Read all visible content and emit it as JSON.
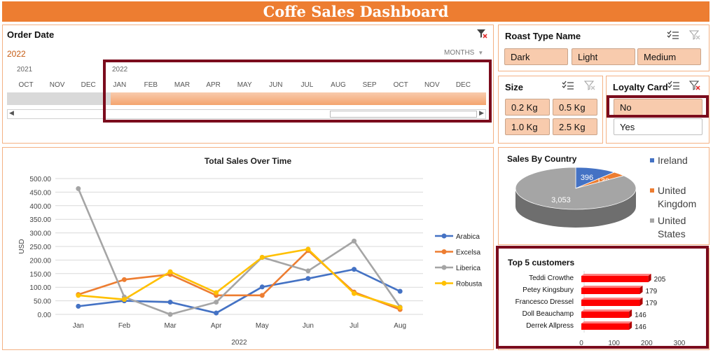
{
  "dashboard": {
    "title": "Coffe Sales Dashboard"
  },
  "timeline": {
    "title": "Order Date",
    "selected_label": "2022",
    "period_control": "MONTHS",
    "year_prev": "2021",
    "year_curr": "2022",
    "months_prev": [
      "OCT",
      "NOV",
      "DEC"
    ],
    "months_curr": [
      "JAN",
      "FEB",
      "MAR",
      "APR",
      "MAY",
      "JUN",
      "JUL",
      "AUG",
      "SEP",
      "OCT",
      "NOV",
      "DEC"
    ]
  },
  "roast_slicer": {
    "title": "Roast Type Name",
    "items": [
      "Dark",
      "Light",
      "Medium"
    ]
  },
  "size_slicer": {
    "title": "Size",
    "items": [
      "0.2 Kg",
      "0.5 Kg",
      "1.0 Kg",
      "2.5 Kg"
    ]
  },
  "loyalty_slicer": {
    "title": "Loyalty Card",
    "items": [
      "No",
      "Yes"
    ],
    "selected": "No"
  },
  "colors": {
    "accent": "#ed7d31",
    "selected_fill": "#f8cbad",
    "highlight_border": "#7b0c1d"
  },
  "chart_data": [
    {
      "type": "line",
      "title": "Total Sales Over Time",
      "xlabel": "2022",
      "ylabel": "USD",
      "categories": [
        "Jan",
        "Feb",
        "Mar",
        "Apr",
        "May",
        "Jun",
        "Jul",
        "Aug"
      ],
      "ylim": [
        0,
        500
      ],
      "yticks": [
        "0.00",
        "50.00",
        "100.00",
        "150.00",
        "200.00",
        "250.00",
        "300.00",
        "350.00",
        "400.00",
        "450.00",
        "500.00"
      ],
      "grid": true,
      "legend": "right",
      "series": [
        {
          "name": "Arabica",
          "color": "#4472c4",
          "values": [
            30,
            50,
            45,
            5,
            101,
            132,
            166,
            85
          ]
        },
        {
          "name": "Excelsa",
          "color": "#ed7d31",
          "values": [
            73,
            128,
            147,
            70,
            70,
            235,
            82,
            18
          ]
        },
        {
          "name": "Liberica",
          "color": "#a5a5a5",
          "values": [
            463,
            64,
            0,
            45,
            210,
            160,
            270,
            27
          ]
        },
        {
          "name": "Robusta",
          "color": "#ffc000",
          "values": [
            70,
            55,
            157,
            80,
            210,
            240,
            77,
            25
          ]
        }
      ]
    },
    {
      "type": "pie",
      "title": "Sales By Country",
      "legend": "right",
      "categories": [
        "Ireland",
        "United Kingdom",
        "United States"
      ],
      "values": [
        396,
        130,
        3053
      ],
      "labels": [
        "396",
        "130",
        "3,053"
      ],
      "colors": [
        "#4472c4",
        "#ed7d31",
        "#a5a5a5"
      ]
    },
    {
      "type": "bar",
      "title": "Top 5 customers",
      "categories": [
        "Teddi Crowthe",
        "Petey Kingsbury",
        "Francesco Dressel",
        "Doll Beauchamp",
        "Derrek Allpress"
      ],
      "values": [
        205,
        179,
        179,
        146,
        146
      ],
      "xlim": [
        0,
        300
      ],
      "xticks": [
        "0",
        "100",
        "200",
        "300"
      ],
      "color": "#ff0000"
    }
  ]
}
